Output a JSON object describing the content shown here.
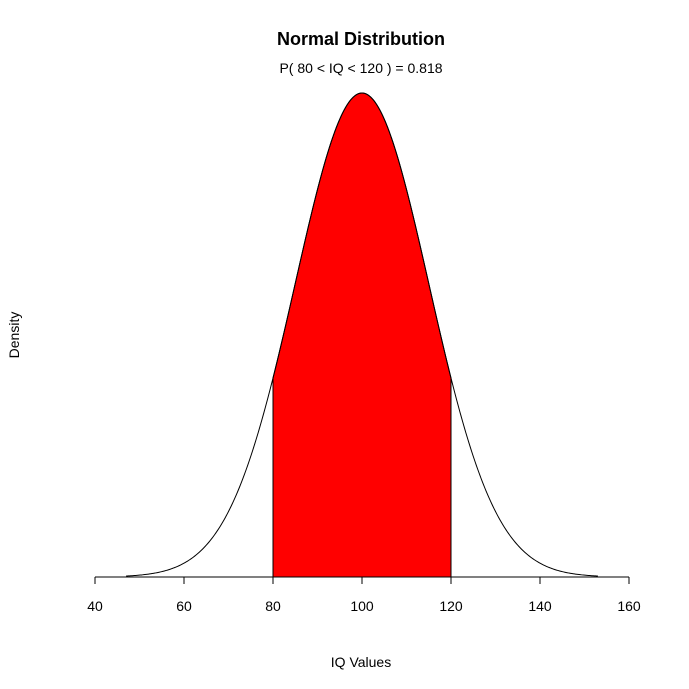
{
  "chart_data": {
    "type": "area",
    "title": "Normal Distribution",
    "subtitle": "P( 80 < IQ < 120 ) = 0.818",
    "xlabel": "IQ Values",
    "ylabel": "Density",
    "distribution": {
      "mean": 100,
      "sd": 15
    },
    "curve_range": [
      47,
      153
    ],
    "shaded_range": [
      80,
      120
    ],
    "probability": 0.818,
    "xlim": [
      40,
      160
    ],
    "x_ticks": [
      40,
      60,
      80,
      100,
      120,
      140,
      160
    ],
    "shade_color": "#ff0000",
    "line_color": "#000000",
    "grid": false,
    "legend": "none"
  }
}
